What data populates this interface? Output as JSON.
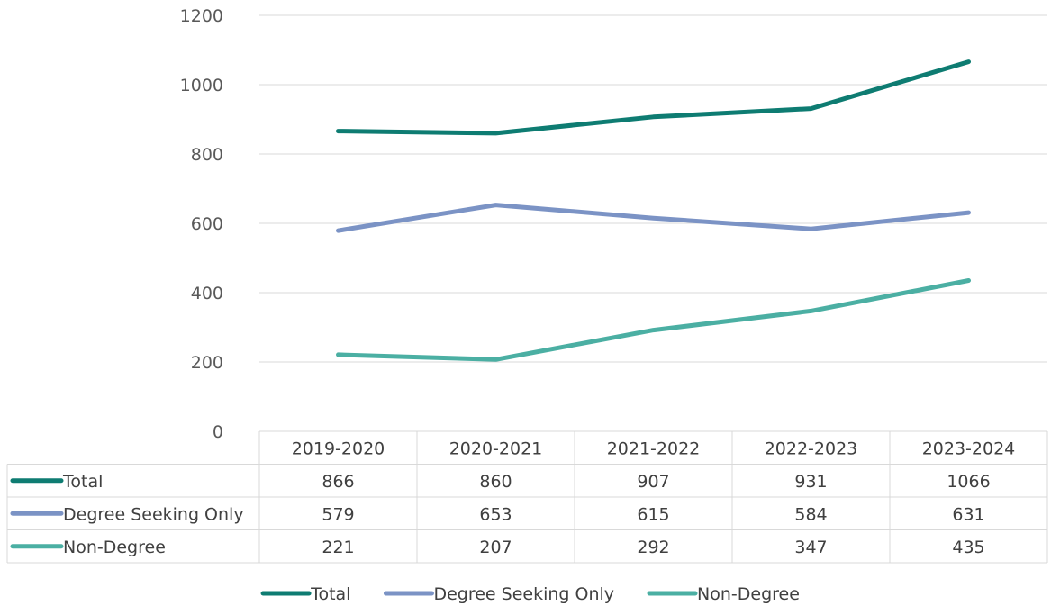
{
  "chart_data": {
    "type": "line",
    "title": "",
    "xlabel": "",
    "ylabel": "",
    "ylim": [
      0,
      1200
    ],
    "yticks": [
      0,
      200,
      400,
      600,
      800,
      1000,
      1200
    ],
    "categories": [
      "2019-2020",
      "2020-2021",
      "2021-2022",
      "2022-2023",
      "2023-2024"
    ],
    "grid": true,
    "legend_position": "bottom",
    "data_table": true,
    "series": [
      {
        "name": "Total",
        "values": [
          866,
          860,
          907,
          931,
          1066
        ],
        "color": "#0E7C72"
      },
      {
        "name": "Degree Seeking Only",
        "values": [
          579,
          653,
          615,
          584,
          631
        ],
        "color": "#7B93C5"
      },
      {
        "name": "Non-Degree",
        "values": [
          221,
          207,
          292,
          347,
          435
        ],
        "color": "#4BAFA3"
      }
    ]
  }
}
